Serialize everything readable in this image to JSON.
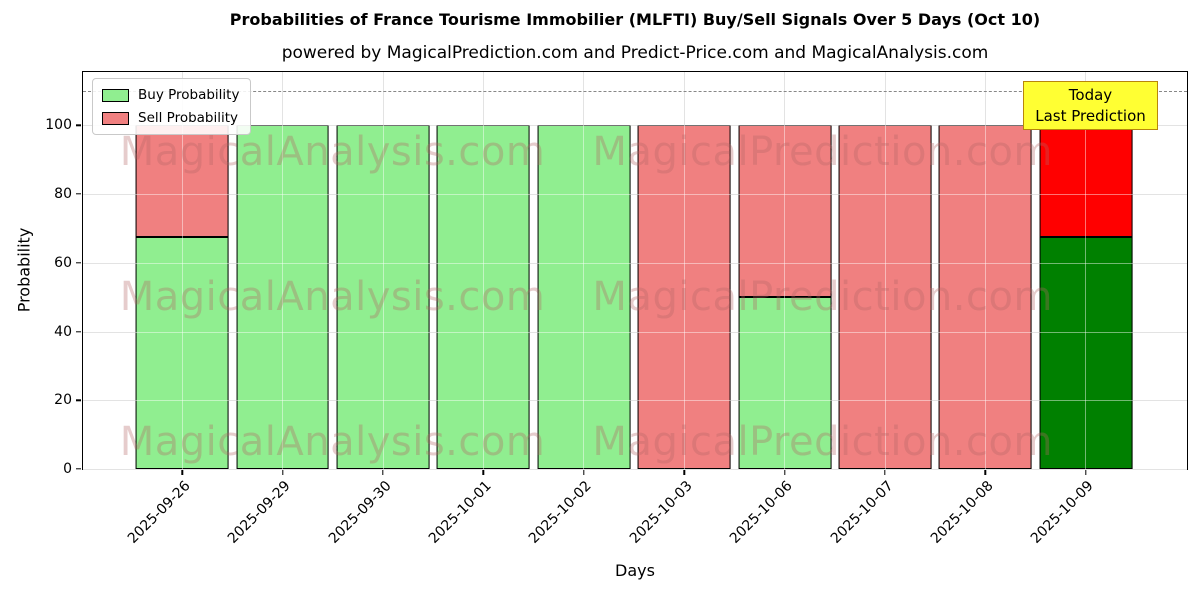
{
  "title": "Probabilities of France Tourisme Immobilier (MLFTI) Buy/Sell Signals Over 5 Days (Oct 10)",
  "subtitle": "powered by MagicalPrediction.com and Predict-Price.com and MagicalAnalysis.com",
  "annotation": {
    "line1": "Today",
    "line2": "Last Prediction",
    "bg_color": "#ffff33",
    "border_color": "#b8860b"
  },
  "legend": [
    {
      "label": "Buy Probability",
      "color": "#90EE90"
    },
    {
      "label": "Sell Probability",
      "color": "#F08080"
    }
  ],
  "watermarks": {
    "left_text": "MagicalAnalysis.com",
    "right_text": "MagicalPrediction.com",
    "color": "rgba(180,100,100,0.33)"
  },
  "chart_data": {
    "type": "bar",
    "stacked": true,
    "title": "Probabilities of France Tourisme Immobilier (MLFTI) Buy/Sell Signals Over 5 Days (Oct 10)",
    "categories": [
      "2025-09-26",
      "2025-09-29",
      "2025-09-30",
      "2025-10-01",
      "2025-10-02",
      "2025-10-03",
      "2025-10-06",
      "2025-10-07",
      "2025-10-08",
      "2025-10-09"
    ],
    "series": [
      {
        "name": "Buy Probability",
        "color": "#90EE90",
        "today_color": "#008000",
        "values": [
          67.5,
          100,
          100,
          100,
          100,
          0,
          50,
          0,
          0,
          67.5
        ]
      },
      {
        "name": "Sell Probability",
        "color": "#F08080",
        "today_color": "#FF0000",
        "values": [
          32.5,
          0,
          0,
          0,
          0,
          100,
          50,
          100,
          100,
          32.5
        ]
      }
    ],
    "xlabel": "Days",
    "ylabel": "Probability",
    "yticks": [
      0,
      20,
      40,
      60,
      80,
      100
    ],
    "ylim": [
      0,
      115.5
    ],
    "dashed_line_y": 110,
    "grid": true,
    "legend_position": "upper left",
    "today_index": 9,
    "bar_edge_color": "#000000"
  }
}
